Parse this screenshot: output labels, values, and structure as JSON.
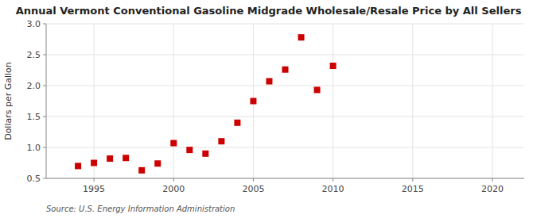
{
  "chart_data": {
    "type": "scatter",
    "title": "Annual Vermont Conventional Gasoline Midgrade Wholesale/Resale Price by All Sellers",
    "y_label": "Dollars per Gallon",
    "annotations": [
      "Source: U.S. Energy Information Administration"
    ],
    "x": [
      1994,
      1995,
      1996,
      1997,
      1998,
      1999,
      2000,
      2001,
      2002,
      2003,
      2004,
      2005,
      2006,
      2007,
      2008,
      2009,
      2010
    ],
    "values": [
      0.7,
      0.75,
      0.82,
      0.83,
      0.63,
      0.74,
      1.07,
      0.96,
      0.9,
      1.1,
      1.4,
      1.75,
      2.07,
      2.26,
      2.78,
      1.93,
      2.32
    ],
    "xlim": [
      1992,
      2022
    ],
    "ylim": [
      0.5,
      3.0
    ],
    "xticks": [
      1995,
      2000,
      2005,
      2010,
      2015,
      2020
    ],
    "yticks": [
      0.5,
      {
        "value": 1.0,
        "label": "1.0"
      },
      1.5,
      {
        "value": 2.0,
        "label": "2.0"
      },
      2.5,
      {
        "value": 3.0,
        "label": "3.0"
      }
    ],
    "color": "#cc0000",
    "marker": "square",
    "grid": true
  }
}
